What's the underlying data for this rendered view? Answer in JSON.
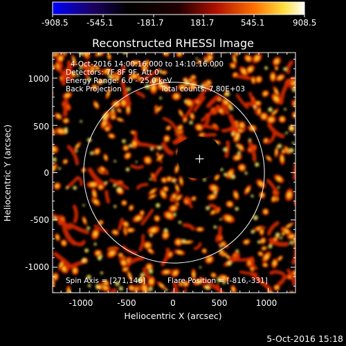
{
  "colorbar": {
    "tick_labels": [
      "-908.5",
      "-545.1",
      "-181.7",
      "181.7",
      "545.1",
      "908.5"
    ],
    "min": -908.5,
    "max": 908.5
  },
  "title": "Reconstructed RHESSI Image",
  "annotations": {
    "time_range": "4-Oct-2016 14:00:16.000 to 14:10:16.000",
    "detectors": "Detectors: 7F 8F 9F, Att 0",
    "energy_range": "Energy Range: 6.0 - 25.0 keV",
    "method": "Back Projection",
    "total_counts": "Total counts: 7.80E+03",
    "spin_axis": "Spin Axis = [271,146]",
    "flare_position": "Flare Position = [-816,-331]"
  },
  "axes": {
    "xlabel": "Heliocentric X (arcsec)",
    "ylabel": "Heliocentric Y (arcsec)",
    "x_ticks": [
      "-1000",
      "-500",
      "0",
      "500",
      "1000"
    ],
    "y_ticks": [
      "1000",
      "500",
      "0",
      "-500",
      "-1000"
    ],
    "xlim": [
      -1290,
      1290
    ],
    "ylim": [
      -1270,
      1270
    ]
  },
  "solar_disk_radius_arcsec": 960,
  "footer_timestamp": "5-Oct-2016 15:18",
  "colors": {
    "background": "#000000",
    "foreground": "#ffffff",
    "heat_low": "#200000",
    "heat_mid": "#d01800",
    "heat_high": "#ffff80"
  }
}
